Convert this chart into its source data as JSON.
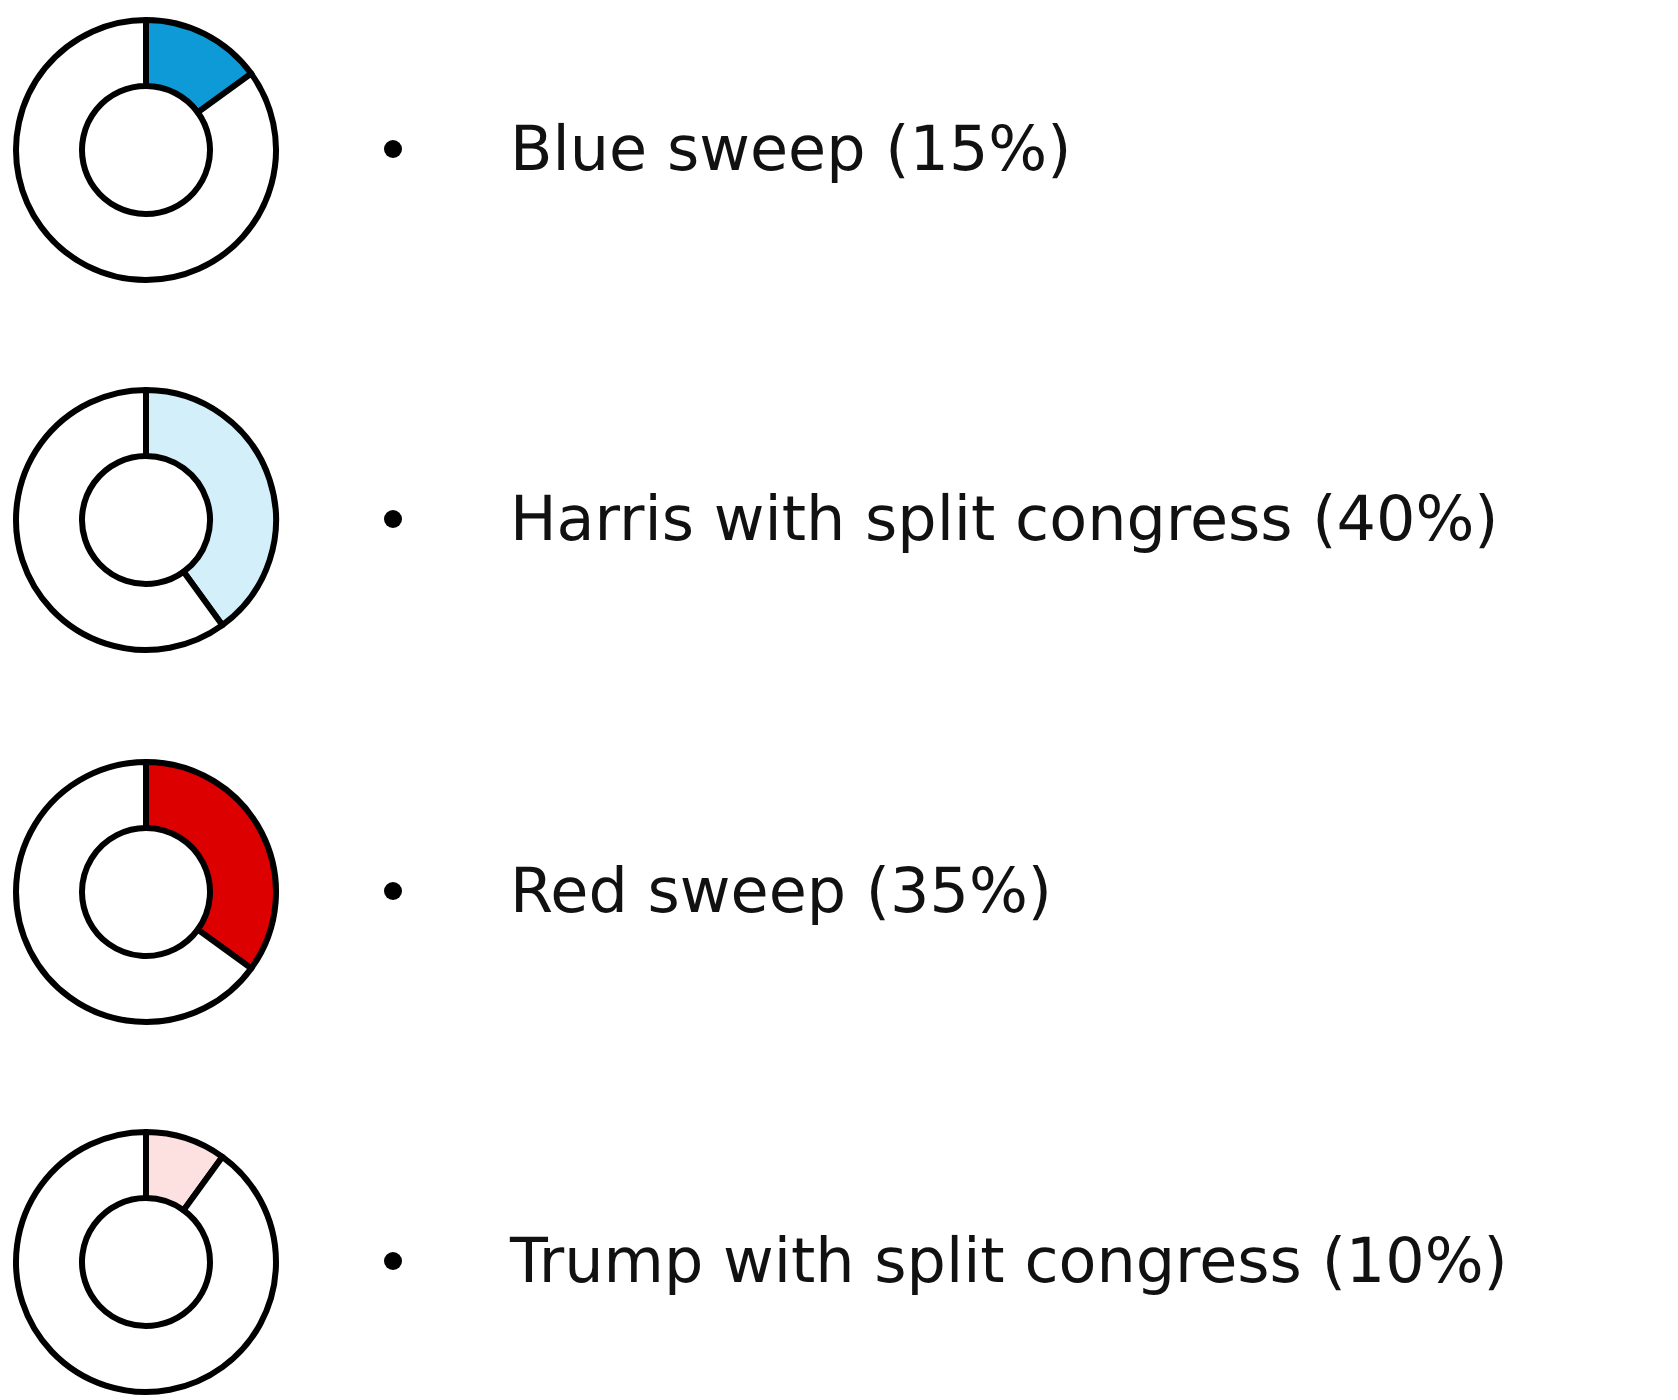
{
  "chart_data": [
    {
      "type": "donut",
      "title": "Blue sweep (15%)",
      "categories": [
        null,
        null
      ],
      "values": [
        15,
        85
      ],
      "colors": [
        "#0e9ad6",
        "#ffffff"
      ]
    },
    {
      "type": "donut",
      "title": "Harris with split congress (40%)",
      "categories": [
        null,
        null
      ],
      "values": [
        40,
        60
      ],
      "colors": [
        "#d3eff9",
        "#ffffff"
      ]
    },
    {
      "type": "donut",
      "title": "Red sweep (35%)",
      "categories": [
        null,
        null
      ],
      "values": [
        35,
        65
      ],
      "colors": [
        "#dd0000",
        "#ffffff"
      ]
    },
    {
      "type": "donut",
      "title": "Trump with split congress (10%)",
      "categories": [
        null,
        null
      ],
      "values": [
        10,
        90
      ],
      "colors": [
        "#fde0e0",
        "#ffffff"
      ]
    }
  ]
}
